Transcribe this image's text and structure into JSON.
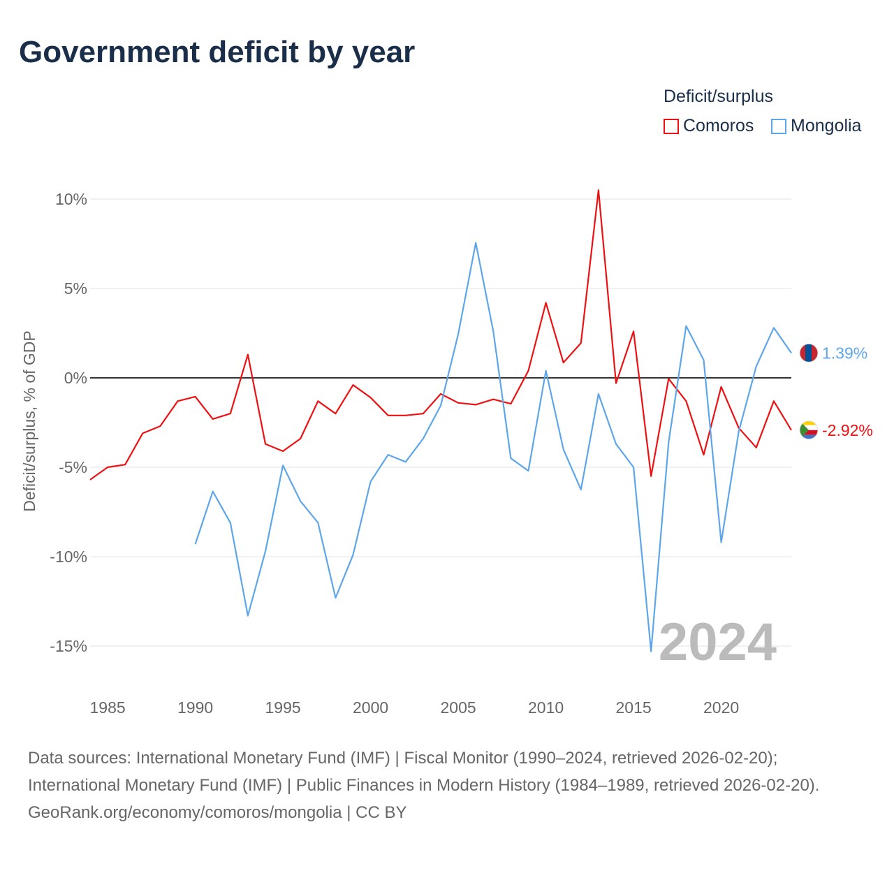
{
  "chart_data": {
    "type": "line",
    "title": "Government deficit by year",
    "ylabel": "Deficit/surplus, % of GDP",
    "xlabel": "",
    "xlim": [
      1984,
      2024
    ],
    "ylim": [
      -17,
      12
    ],
    "yticks": [
      10,
      5,
      0,
      -5,
      -10,
      -15
    ],
    "ytick_labels": [
      "10%",
      "5%",
      "0%",
      "-5%",
      "-10%",
      "-15%"
    ],
    "xticks": [
      1985,
      1990,
      1995,
      2000,
      2005,
      2010,
      2015,
      2020
    ],
    "xtick_labels": [
      "1985",
      "1990",
      "1995",
      "2000",
      "2005",
      "2010",
      "2015",
      "2020"
    ],
    "legend_title": "Deficit/surplus",
    "legend_position": "top-right",
    "watermark_year": "2024",
    "series": [
      {
        "name": "Comoros",
        "color": "#ee1111",
        "end_label": "-2.92%",
        "start_year": 1984,
        "values": [
          -5.7,
          -5.0,
          -4.85,
          -3.1,
          -2.7,
          -1.3,
          -1.05,
          -2.3,
          -2.0,
          1.3,
          -3.7,
          -4.1,
          -3.4,
          -1.3,
          -2.0,
          -0.4,
          -1.1,
          -2.1,
          -2.1,
          -2.0,
          -0.9,
          -1.4,
          -1.5,
          -1.2,
          -1.45,
          0.4,
          4.2,
          0.85,
          1.95,
          10.5,
          -0.3,
          2.6,
          -5.5,
          -0.05,
          -1.3,
          -4.3,
          -0.5,
          -2.8,
          -3.9,
          -1.3,
          -2.92
        ]
      },
      {
        "name": "Mongolia",
        "color": "#5ea6ea",
        "end_label": "1.39%",
        "start_year": 1990,
        "values": [
          -9.3,
          -6.35,
          -8.1,
          -13.3,
          -9.7,
          -4.9,
          -6.9,
          -8.1,
          -12.3,
          -9.9,
          -5.8,
          -4.3,
          -4.7,
          -3.4,
          -1.55,
          2.45,
          7.55,
          2.6,
          -4.5,
          -5.2,
          0.4,
          -4.0,
          -6.25,
          -0.9,
          -3.7,
          -5.0,
          -15.3,
          -3.6,
          2.9,
          1.0,
          -9.2,
          -3.0,
          0.65,
          2.8,
          1.39
        ]
      }
    ]
  },
  "footer": {
    "sources": "Data sources: International Monetary Fund (IMF) | Fiscal Monitor (1990–2024, retrieved 2026-02-20); International Monetary Fund (IMF) | Public Finances in Modern History (1984–1989, retrieved 2026-02-20).",
    "credit": "GeoRank.org/economy/comoros/mongolia | CC BY"
  }
}
